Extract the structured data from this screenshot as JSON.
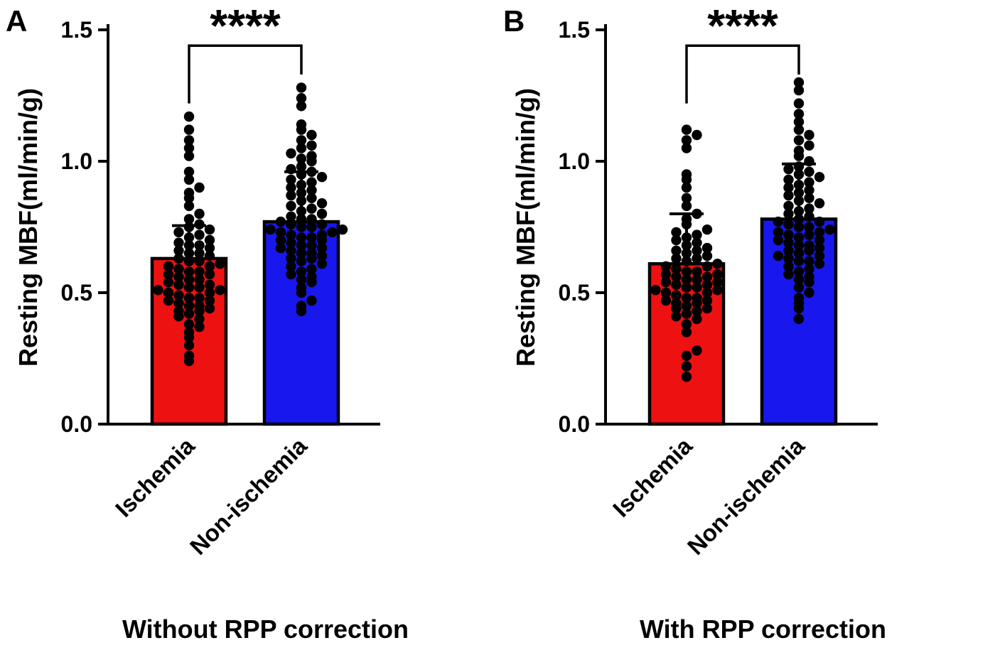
{
  "figure_title": "",
  "chart_data": [
    {
      "type": "bar",
      "panel_letter": "A",
      "title": "Without RPP correction",
      "ylabel": "Resting MBF(ml/min/g)",
      "ylim": [
        0,
        1.5
      ],
      "yticks": [
        "0.0",
        "0.5",
        "1.0",
        "1.5"
      ],
      "ytick_values": [
        0.0,
        0.5,
        1.0,
        1.5
      ],
      "significance": "****",
      "categories": [
        "Ischemia",
        "Non-ischemia"
      ],
      "bar_colors": [
        "#ee1111",
        "#1818ee"
      ],
      "bars": [
        {
          "mean": 0.63,
          "sd_top": 0.755
        },
        {
          "mean": 0.77,
          "sd_top": 0.96
        }
      ],
      "points": [
        [
          0.24,
          0.26,
          0.3,
          0.33,
          0.35,
          0.37,
          0.38,
          0.4,
          0.41,
          0.42,
          0.43,
          0.43,
          0.44,
          0.45,
          0.45,
          0.46,
          0.47,
          0.47,
          0.48,
          0.48,
          0.49,
          0.5,
          0.5,
          0.51,
          0.51,
          0.52,
          0.52,
          0.53,
          0.53,
          0.54,
          0.55,
          0.55,
          0.56,
          0.57,
          0.57,
          0.58,
          0.58,
          0.59,
          0.6,
          0.6,
          0.61,
          0.62,
          0.62,
          0.63,
          0.64,
          0.65,
          0.65,
          0.66,
          0.67,
          0.68,
          0.68,
          0.69,
          0.7,
          0.71,
          0.72,
          0.73,
          0.74,
          0.75,
          0.76,
          0.78,
          0.8,
          0.83,
          0.86,
          0.88,
          0.9,
          0.93,
          0.96,
          1.02,
          1.05,
          1.08,
          1.12,
          1.17
        ],
        [
          0.43,
          0.45,
          0.47,
          0.5,
          0.52,
          0.54,
          0.55,
          0.56,
          0.57,
          0.58,
          0.59,
          0.6,
          0.61,
          0.62,
          0.63,
          0.63,
          0.64,
          0.65,
          0.65,
          0.66,
          0.67,
          0.67,
          0.68,
          0.68,
          0.69,
          0.7,
          0.7,
          0.71,
          0.71,
          0.72,
          0.72,
          0.73,
          0.73,
          0.74,
          0.74,
          0.75,
          0.75,
          0.76,
          0.76,
          0.77,
          0.78,
          0.78,
          0.79,
          0.8,
          0.81,
          0.82,
          0.83,
          0.84,
          0.85,
          0.86,
          0.87,
          0.88,
          0.89,
          0.9,
          0.91,
          0.92,
          0.93,
          0.94,
          0.95,
          0.96,
          0.97,
          0.98,
          1.0,
          1.01,
          1.02,
          1.03,
          1.05,
          1.06,
          1.08,
          1.1,
          1.12,
          1.14,
          1.21,
          1.24,
          1.28
        ]
      ]
    },
    {
      "type": "bar",
      "panel_letter": "B",
      "title": "With RPP correction",
      "ylabel": "Resting MBF(ml/min/g)",
      "ylim": [
        0,
        1.5
      ],
      "yticks": [
        "0.0",
        "0.5",
        "1.0",
        "1.5"
      ],
      "ytick_values": [
        0.0,
        0.5,
        1.0,
        1.5
      ],
      "significance": "****",
      "categories": [
        "Ischemia",
        "Non-ischemia"
      ],
      "bar_colors": [
        "#ee1111",
        "#1818ee"
      ],
      "bars": [
        {
          "mean": 0.61,
          "sd_top": 0.8
        },
        {
          "mean": 0.78,
          "sd_top": 0.99
        }
      ],
      "points": [
        [
          0.18,
          0.22,
          0.26,
          0.28,
          0.35,
          0.38,
          0.4,
          0.41,
          0.42,
          0.43,
          0.44,
          0.44,
          0.45,
          0.46,
          0.46,
          0.47,
          0.47,
          0.48,
          0.48,
          0.49,
          0.5,
          0.5,
          0.51,
          0.51,
          0.52,
          0.52,
          0.53,
          0.53,
          0.54,
          0.54,
          0.55,
          0.55,
          0.56,
          0.56,
          0.57,
          0.57,
          0.58,
          0.58,
          0.59,
          0.6,
          0.6,
          0.61,
          0.62,
          0.63,
          0.63,
          0.64,
          0.65,
          0.66,
          0.66,
          0.67,
          0.68,
          0.69,
          0.7,
          0.71,
          0.72,
          0.73,
          0.74,
          0.76,
          0.78,
          0.8,
          0.83,
          0.86,
          0.9,
          0.93,
          0.95,
          1.05,
          1.08,
          1.1,
          1.12
        ],
        [
          0.4,
          0.44,
          0.46,
          0.48,
          0.5,
          0.52,
          0.54,
          0.55,
          0.56,
          0.57,
          0.58,
          0.59,
          0.6,
          0.61,
          0.62,
          0.62,
          0.63,
          0.64,
          0.64,
          0.65,
          0.66,
          0.66,
          0.67,
          0.68,
          0.68,
          0.69,
          0.7,
          0.7,
          0.71,
          0.72,
          0.72,
          0.73,
          0.73,
          0.74,
          0.75,
          0.75,
          0.76,
          0.77,
          0.77,
          0.78,
          0.79,
          0.8,
          0.81,
          0.82,
          0.83,
          0.84,
          0.85,
          0.86,
          0.87,
          0.88,
          0.89,
          0.9,
          0.91,
          0.92,
          0.93,
          0.94,
          0.95,
          0.96,
          0.97,
          0.98,
          1.0,
          1.02,
          1.04,
          1.06,
          1.08,
          1.1,
          1.12,
          1.15,
          1.18,
          1.22,
          1.27,
          1.3
        ]
      ]
    }
  ],
  "style": {
    "dot_color": "#000000",
    "axis_color": "#000000",
    "text_color": "#000000"
  }
}
